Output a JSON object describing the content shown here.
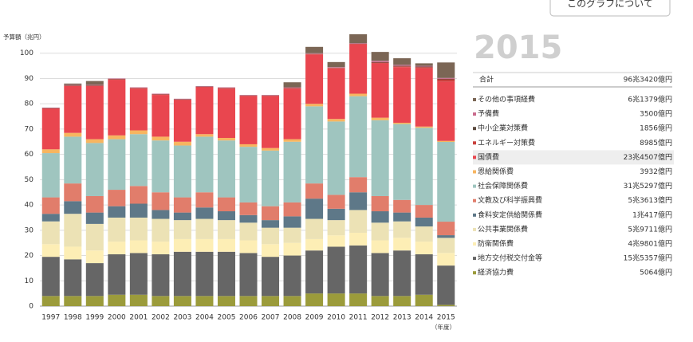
{
  "chart_data": {
    "type": "stacked_bar",
    "y_label": "予算額（兆円）",
    "x_unit": "（年度）",
    "button": "このグラフについて",
    "categories": [
      "1997",
      "1998",
      "1999",
      "2000",
      "2001",
      "2002",
      "2003",
      "2004",
      "2005",
      "2006",
      "2007",
      "2008",
      "2009",
      "2010",
      "2011",
      "2012",
      "2013",
      "2014",
      "2015"
    ],
    "ylim": [
      0,
      110
    ],
    "yticks": [
      0,
      10,
      20,
      30,
      40,
      50,
      60,
      70,
      80,
      90,
      100
    ],
    "grid": true,
    "series": [
      {
        "name": "その他の事項経費",
        "color": "#7b6655",
        "values": [
          0,
          0.5,
          1.5,
          0,
          0,
          0,
          0,
          0,
          0,
          0,
          0,
          2,
          2.5,
          2,
          3.5,
          3.5,
          2.6,
          1,
          6.1379
        ]
      },
      {
        "name": "予備費",
        "color": "#c96a8c",
        "values": [
          0.2,
          0.2,
          0.2,
          0.2,
          0.2,
          0.2,
          0.2,
          0.2,
          0.2,
          0.2,
          0.2,
          0.2,
          0.2,
          0.2,
          0.2,
          0.5,
          0.4,
          0.3,
          0.35
        ]
      },
      {
        "name": "中小企業対策費",
        "color": "#5b4a3f",
        "values": [
          0.1,
          0.1,
          0.1,
          0.1,
          0.1,
          0.1,
          0.1,
          0.1,
          0.1,
          0.1,
          0.1,
          0.1,
          0.1,
          0.1,
          0.1,
          0.2,
          0.2,
          0.2,
          0.1856
        ]
      },
      {
        "name": "エネルギー対策費",
        "color": "#c9403c",
        "values": [
          0.2,
          0.2,
          0.2,
          0.2,
          0.2,
          0.2,
          0.2,
          0.2,
          0.2,
          0.2,
          0.2,
          0.2,
          0.2,
          0.2,
          0.2,
          0.3,
          0.3,
          0.5,
          0.8985
        ]
      },
      {
        "name": "国債費",
        "color": "#e9464f",
        "values": [
          16,
          18.5,
          21,
          22,
          16.5,
          16.5,
          16.5,
          18.5,
          19.5,
          19,
          20.5,
          20,
          19.5,
          20,
          19.5,
          21.5,
          22,
          23,
          23.4507
        ]
      },
      {
        "name": "恩給関係費",
        "color": "#f7b560",
        "values": [
          1.5,
          1.5,
          1.5,
          1.5,
          1.5,
          1.5,
          1.5,
          1,
          1,
          1,
          1,
          1,
          1,
          1,
          1,
          1,
          0.5,
          0.5,
          0.3932
        ]
      },
      {
        "name": "社会保障関係費",
        "color": "#9fc5bf",
        "values": [
          17.5,
          18.5,
          21,
          20,
          20.5,
          20.5,
          20.5,
          22,
          22.5,
          22,
          22,
          24,
          30.5,
          29,
          32,
          30,
          30,
          30.5,
          31.5297
        ]
      },
      {
        "name": "文教及び科学振興費",
        "color": "#e17d6b",
        "values": [
          6.5,
          7,
          6.5,
          6.5,
          7,
          7,
          6,
          6,
          5.5,
          5,
          5.5,
          5.5,
          6,
          5.5,
          6,
          6,
          5,
          5,
          5.3613
        ]
      },
      {
        "name": "食料安定供給関係費",
        "color": "#5e7888",
        "values": [
          3,
          5,
          4.5,
          4.5,
          5.5,
          3.5,
          3,
          4.5,
          3.5,
          3,
          3,
          4.5,
          8,
          4.5,
          7,
          4.5,
          3.5,
          3.5,
          1.0417
        ]
      },
      {
        "name": "公共事業関係費",
        "color": "#ece2b5",
        "values": [
          9,
          13,
          10.5,
          9.5,
          9,
          9,
          7.5,
          8,
          7.5,
          7,
          6.5,
          6,
          8,
          6,
          9,
          7,
          6.5,
          6,
          5.9711
        ]
      },
      {
        "name": "防衛関係費",
        "color": "#fdeeb5",
        "values": [
          5,
          5,
          5,
          5,
          5,
          5,
          5,
          5,
          5,
          5,
          5,
          5,
          4.5,
          4.5,
          5,
          5,
          5,
          5,
          4.9801
        ]
      },
      {
        "name": "地方交付税交付金等",
        "color": "#666666",
        "values": [
          15.5,
          14.5,
          13,
          16,
          16.5,
          16.5,
          17.5,
          17.5,
          17.5,
          17,
          15.5,
          16,
          17,
          18.5,
          19,
          17,
          18,
          16,
          15.5357
        ]
      },
      {
        "name": "経済協力費",
        "color": "#9b9b3b",
        "values": [
          4,
          4,
          4,
          4.5,
          4.5,
          4,
          4,
          4,
          4,
          4,
          4,
          4,
          5,
          5,
          5,
          4,
          4,
          4.5,
          0.5064
        ]
      }
    ],
    "panel": {
      "year": "2015",
      "total_label": "合計",
      "total": "96兆3420億円",
      "highlight": 4,
      "amounts": [
        "6兆1379億円",
        "3500億円",
        "1856億円",
        "8985億円",
        "23兆4507億円",
        "3932億円",
        "31兆5297億円",
        "5兆3613億円",
        "1兆417億円",
        "5兆9711億円",
        "4兆9801億円",
        "15兆5357億円",
        "5064億円"
      ]
    }
  }
}
